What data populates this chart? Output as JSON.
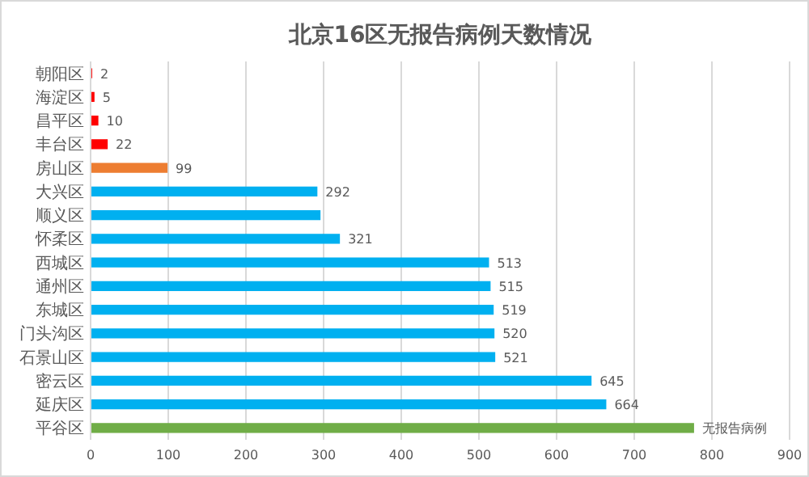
{
  "chart_data": {
    "type": "bar",
    "orientation": "horizontal",
    "title": "北京16区无报告病例天数情况",
    "categories": [
      "朝阳区",
      "海淀区",
      "昌平区",
      "丰台区",
      "房山区",
      "大兴区",
      "顺义区",
      "怀柔区",
      "西城区",
      "通州区",
      "东城区",
      "门头沟区",
      "石景山区",
      "密云区",
      "延庆区",
      "平谷区"
    ],
    "values": [
      2,
      5,
      10,
      22,
      99,
      292,
      296,
      321,
      513,
      515,
      519,
      520,
      521,
      645,
      664,
      777
    ],
    "colors": [
      "#ff0000",
      "#ff0000",
      "#ff0000",
      "#ff0000",
      "#ed7d31",
      "#00b0f0",
      "#00b0f0",
      "#00b0f0",
      "#00b0f0",
      "#00b0f0",
      "#00b0f0",
      "#00b0f0",
      "#00b0f0",
      "#00b0f0",
      "#00b0f0",
      "#70ad47"
    ],
    "value_labels": [
      "2",
      "5",
      "10",
      "22",
      "99",
      "292",
      null,
      "321",
      "513",
      "515",
      "519",
      "520",
      "521",
      "645",
      "664",
      "无报告病例"
    ],
    "xlim": [
      0,
      900
    ],
    "xticks": [
      0,
      100,
      200,
      300,
      400,
      500,
      600,
      700,
      800,
      900
    ],
    "grid": "x"
  }
}
